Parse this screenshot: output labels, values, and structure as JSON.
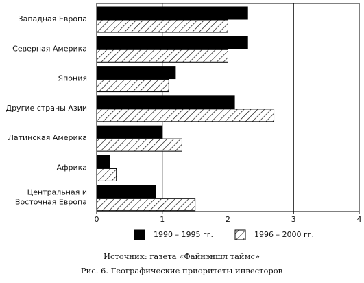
{
  "chart_data": {
    "type": "hbar",
    "categories": [
      "Западная Европа",
      "Северная Америка",
      "Япония",
      "Другие страны Азии",
      "Латинская Америка",
      "Африка",
      "Центральная и\nВосточная Европа"
    ],
    "series": [
      {
        "name": "1990 – 1995 гг.",
        "color": "#000000",
        "values": [
          2.3,
          2.3,
          1.2,
          2.1,
          1.0,
          0.2,
          0.9
        ]
      },
      {
        "name": "1996 – 2000 гг.",
        "color": "#ffffff",
        "hatch": true,
        "values": [
          2.0,
          2.0,
          1.1,
          2.7,
          1.3,
          0.3,
          1.5
        ]
      }
    ],
    "xlim": [
      0,
      4
    ],
    "xticks": [
      0,
      1,
      2,
      3,
      4
    ],
    "grid": true,
    "source": "Источник: газета «Файнэншл таймс»",
    "caption": "Рис. 6. Географические приоритеты инвесторов"
  }
}
